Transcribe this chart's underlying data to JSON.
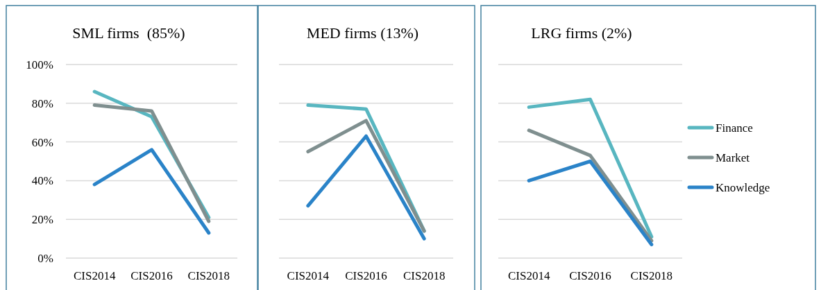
{
  "chart_data": [
    {
      "type": "line",
      "title": "SML firms  (85%)",
      "categories": [
        "CIS2014",
        "CIS2016",
        "CIS2018"
      ],
      "ylim": [
        0,
        100
      ],
      "yticks": [
        {
          "value": 0,
          "label": "0%"
        },
        {
          "value": 20,
          "label": "20%"
        },
        {
          "value": 40,
          "label": "40%"
        },
        {
          "value": 60,
          "label": "60%"
        },
        {
          "value": 80,
          "label": "80%"
        },
        {
          "value": 100,
          "label": "100%"
        }
      ],
      "grid": "y",
      "legend": false,
      "series": [
        {
          "color": "#58b6c0",
          "values": [
            86,
            73,
            21
          ]
        },
        {
          "color": "#7f8f8f",
          "values": [
            79,
            76,
            19
          ]
        },
        {
          "color": "#2a83c8",
          "values": [
            38,
            56,
            13
          ]
        }
      ]
    },
    {
      "type": "line",
      "title": "MED firms (13%)",
      "categories": [
        "CIS2014",
        "CIS2016",
        "CIS2018"
      ],
      "ylim": [
        0,
        100
      ],
      "yticks": [
        {
          "value": 0,
          "label": null
        },
        {
          "value": 20,
          "label": null
        },
        {
          "value": 40,
          "label": null
        },
        {
          "value": 60,
          "label": null
        },
        {
          "value": 80,
          "label": null
        },
        {
          "value": 100,
          "label": null
        }
      ],
      "grid": "y",
      "legend": false,
      "tick_labels": "x",
      "series": [
        {
          "color": "#58b6c0",
          "values": [
            79,
            77,
            14
          ]
        },
        {
          "color": "#7f8f8f",
          "values": [
            55,
            71,
            14
          ]
        },
        {
          "color": "#2a83c8",
          "values": [
            27,
            63,
            10
          ]
        }
      ]
    },
    {
      "type": "line",
      "title": "LRG firms (2%)",
      "categories": [
        "CIS2014",
        "CIS2016",
        "CIS2018"
      ],
      "ylim": [
        0,
        100
      ],
      "yticks": [
        {
          "value": 0,
          "label": null
        },
        {
          "value": 20,
          "label": null
        },
        {
          "value": 40,
          "label": null
        },
        {
          "value": 60,
          "label": null
        },
        {
          "value": 80,
          "label": null
        },
        {
          "value": 100,
          "label": null
        }
      ],
      "grid": "y",
      "legend": "right",
      "tick_labels": "x",
      "series": [
        {
          "name": "Finance",
          "color": "#58b6c0",
          "values": [
            78,
            82,
            11
          ]
        },
        {
          "name": "Market",
          "color": "#7f8f8f",
          "values": [
            66,
            53,
            9
          ]
        },
        {
          "name": "Knowledge",
          "color": "#2a83c8",
          "values": [
            40,
            50,
            7
          ]
        }
      ]
    }
  ]
}
